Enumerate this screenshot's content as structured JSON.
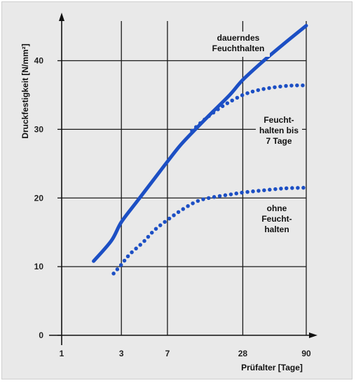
{
  "chart_data": {
    "type": "line",
    "title": "",
    "xlabel": "Prüfalter [Tage]",
    "ylabel": "Druckfestigkeit [N/mm²]",
    "x_scale": "log",
    "x_ticks": [
      1,
      3,
      7,
      28,
      90
    ],
    "x_tick_labels": [
      "1",
      "3",
      "7",
      "28",
      "90"
    ],
    "y_ticks": [
      0,
      10,
      20,
      30,
      40
    ],
    "y_tick_labels": [
      "0",
      "10",
      "20",
      "30",
      "40"
    ],
    "xlim": [
      1,
      90
    ],
    "ylim": [
      0,
      47
    ],
    "grid": true,
    "colors": {
      "series": "#1c4fc4",
      "grid": "#1a1a1a",
      "background": "#e9e9e9"
    },
    "series": [
      {
        "name": "dauerndes Feuchthalten",
        "style": "solid",
        "x": [
          1.8,
          2.5,
          3,
          4,
          5.5,
          7,
          9,
          12,
          16,
          22,
          28,
          40,
          60,
          90
        ],
        "y": [
          10.8,
          13.8,
          16.5,
          19.5,
          22.8,
          25.3,
          27.8,
          30.2,
          32.5,
          35.0,
          37.2,
          39.8,
          42.5,
          45.1
        ]
      },
      {
        "name": "Feuchthalten bis 7 Tage",
        "style": "dotted",
        "x": [
          11,
          14,
          18,
          22,
          28,
          35,
          45,
          60,
          75,
          90
        ],
        "y": [
          29.8,
          31.5,
          33.0,
          34.0,
          35.0,
          35.6,
          36.0,
          36.3,
          36.4,
          36.4
        ]
      },
      {
        "name": "ohne Feuchthalten",
        "style": "dotted",
        "x": [
          2.6,
          3,
          3.5,
          4.5,
          5.5,
          7,
          9,
          12,
          16,
          22,
          28,
          40,
          60,
          90
        ],
        "y": [
          9.0,
          10.3,
          11.8,
          13.6,
          15.3,
          16.8,
          18.2,
          19.5,
          20.1,
          20.5,
          20.8,
          21.1,
          21.4,
          21.5
        ]
      }
    ],
    "annotations": [
      {
        "lines": [
          "dauerndes",
          "Feuchthalten"
        ],
        "for": "dauerndes Feuchthalten"
      },
      {
        "lines": [
          "Feucht-",
          "halten bis",
          "7 Tage"
        ],
        "for": "Feuchthalten bis 7 Tage"
      },
      {
        "lines": [
          "ohne",
          "Feucht-",
          "halten"
        ],
        "for": "ohne Feuchthalten"
      }
    ]
  }
}
